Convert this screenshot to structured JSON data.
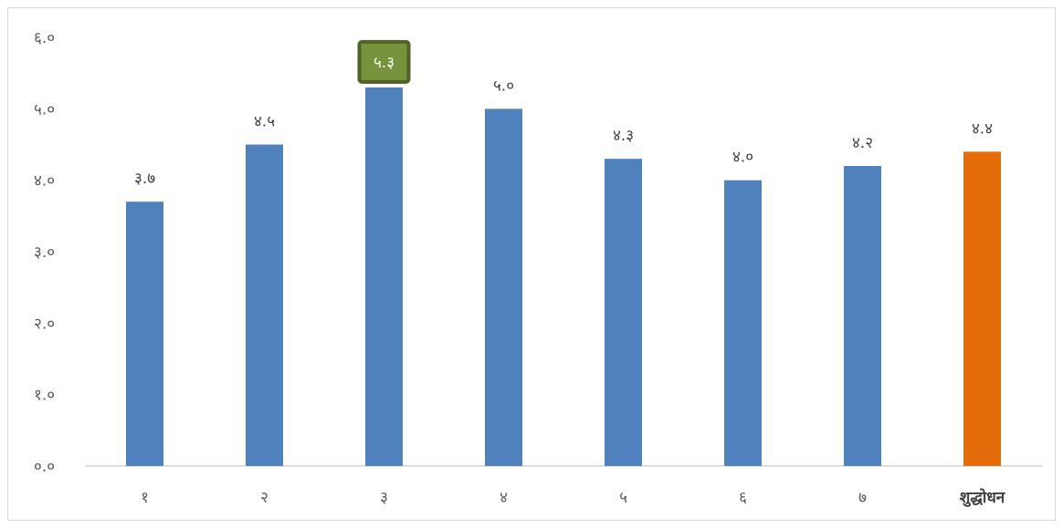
{
  "chart_data": {
    "type": "bar",
    "title": "",
    "xlabel": "",
    "ylabel": "",
    "categories": [
      "१",
      "२",
      "३",
      "४",
      "५",
      "६",
      "७",
      "शुद्धोधन"
    ],
    "values": [
      3.7,
      4.5,
      5.3,
      5.0,
      4.3,
      4.0,
      4.2,
      4.4
    ],
    "value_labels": [
      "३.७",
      "४.५",
      "५.३",
      "५.०",
      "४.३",
      "४.०",
      "४.२",
      "४.४"
    ],
    "ylim": [
      0,
      6
    ],
    "yticks": [
      0,
      1,
      2,
      3,
      4,
      5,
      6
    ],
    "ytick_labels": [
      "०.०",
      "१.०",
      "२.०",
      "३.०",
      "४.०",
      "५.०",
      "६.०"
    ],
    "grid": false,
    "legend": "none",
    "colors": {
      "bar": "#4f81bd",
      "highlight_bar": "#e46c0a",
      "label_box_fill": "#77933c",
      "label_box_border": "#4f6228"
    },
    "highlighted_category_index": 7,
    "boxed_label_index": 2,
    "bold_category_index": 7
  }
}
